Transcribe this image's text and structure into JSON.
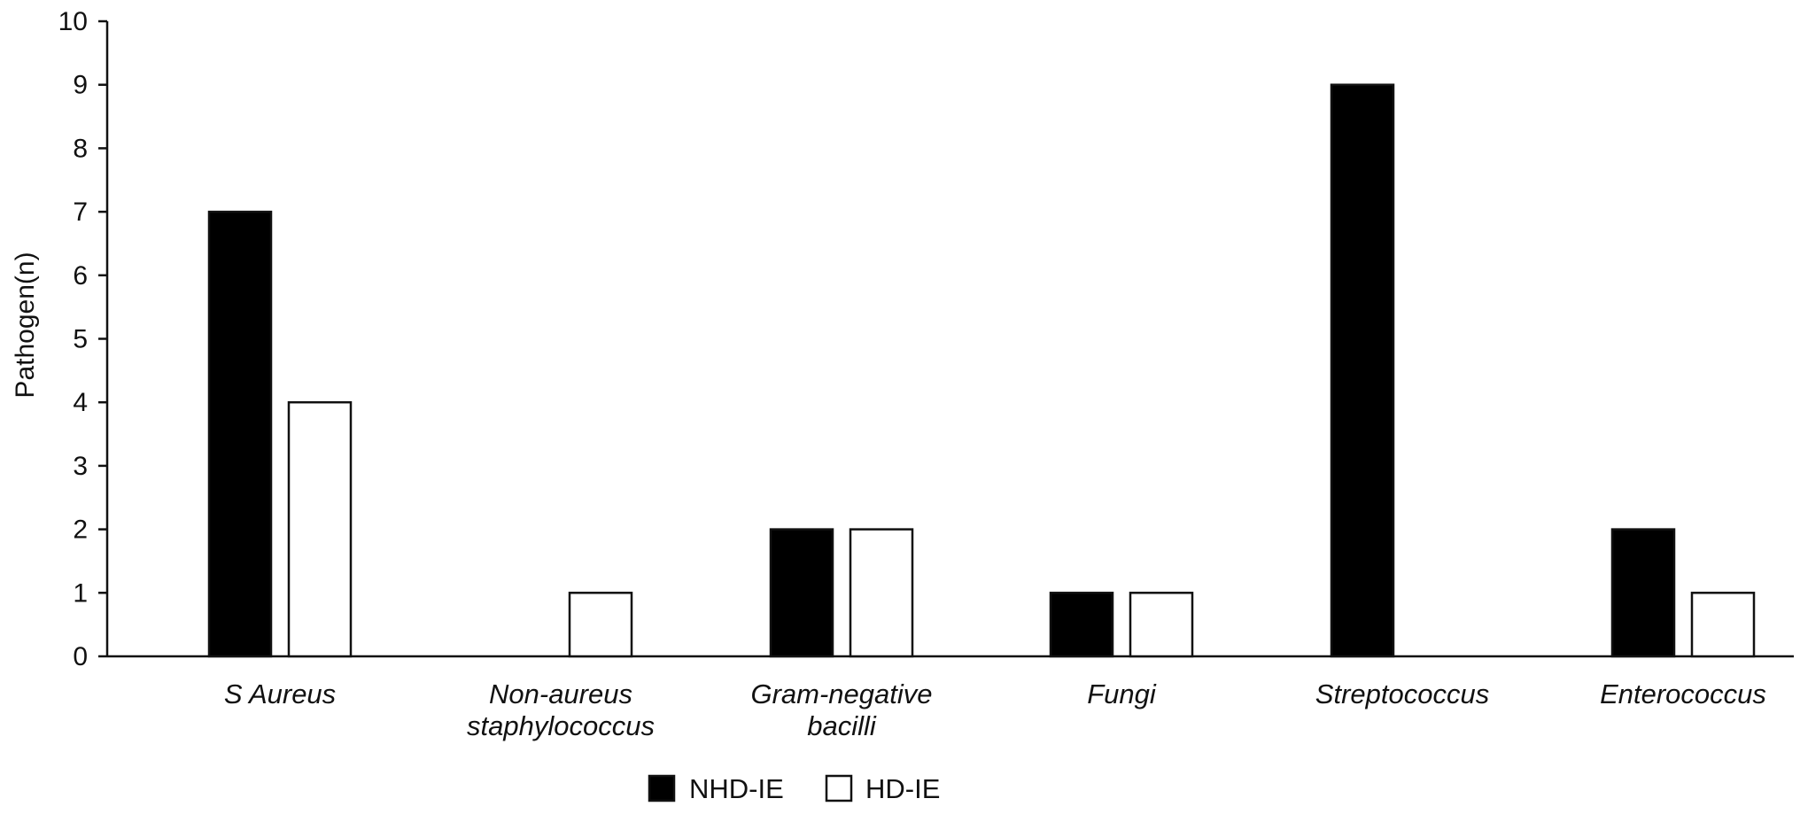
{
  "chart_data": {
    "type": "bar",
    "title": "",
    "xlabel": "",
    "ylabel": "Pathogen(n)",
    "ylim": [
      0,
      10
    ],
    "yticks": [
      0,
      1,
      2,
      3,
      4,
      5,
      6,
      7,
      8,
      9,
      10
    ],
    "categories": [
      [
        "S Aureus"
      ],
      [
        "Non-aureus",
        "staphylococcus"
      ],
      [
        "Gram-negative",
        "bacilli"
      ],
      [
        "Fungi"
      ],
      [
        "Streptococcus"
      ],
      [
        "Enterococcus"
      ]
    ],
    "series": [
      {
        "name": "NHD-IE",
        "color": "#000000",
        "values": [
          7,
          0,
          2,
          1,
          9,
          2
        ]
      },
      {
        "name": "HD-IE",
        "color": "#ffffff",
        "values": [
          4,
          1,
          2,
          1,
          0,
          1
        ]
      }
    ],
    "grid": false,
    "legend": "bottom-center"
  }
}
